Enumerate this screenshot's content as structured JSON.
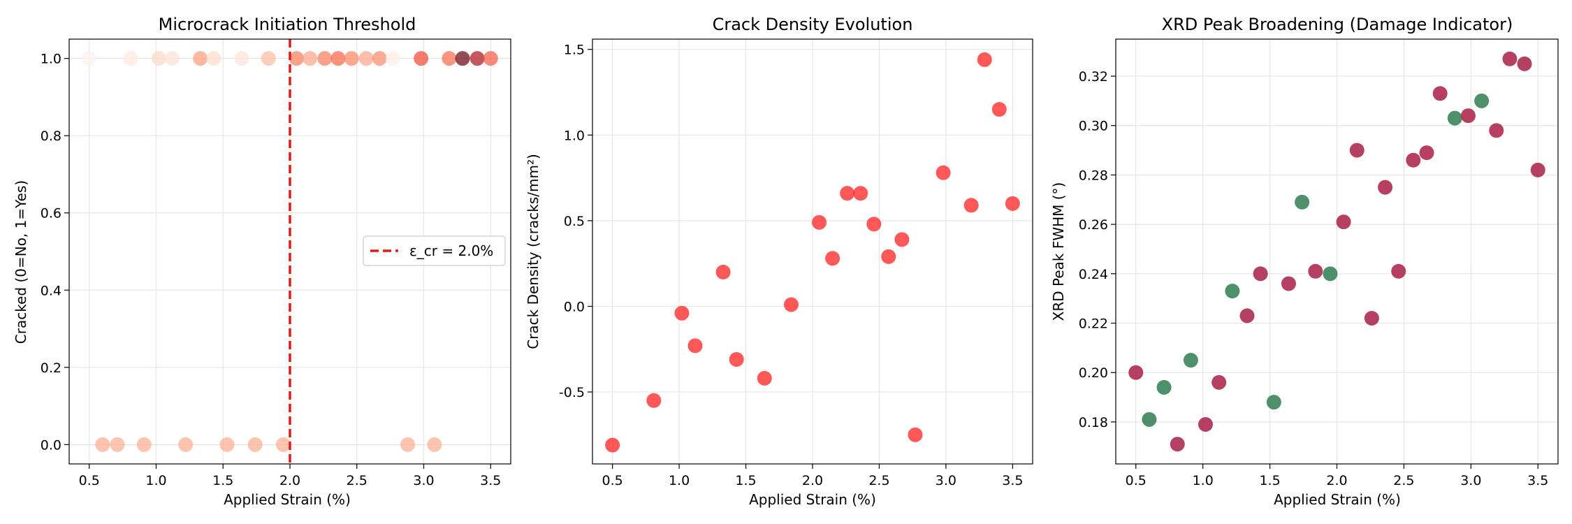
{
  "chart_data": [
    {
      "type": "scatter",
      "title": "Microcrack Initiation Threshold",
      "xlabel": "Applied Strain (%)",
      "ylabel": "Cracked (0=No, 1=Yes)",
      "xlim": [
        0.35,
        3.65
      ],
      "ylim": [
        -0.05,
        1.05
      ],
      "xticks": [
        "0.5",
        "1.0",
        "1.5",
        "2.0",
        "2.5",
        "3.0",
        "3.5"
      ],
      "yticks": [
        "0.0",
        "0.2",
        "0.4",
        "0.6",
        "0.8",
        "1.0"
      ],
      "grid": true,
      "legend_position": "center-right",
      "threshold": {
        "x": 2.0,
        "label": "ε_cr = 2.0%",
        "color": "#e31a1c"
      },
      "points": [
        {
          "x": 0.5,
          "y": 1,
          "c": 0.02
        },
        {
          "x": 0.6,
          "y": 0,
          "c": 0.3
        },
        {
          "x": 0.71,
          "y": 0,
          "c": 0.3
        },
        {
          "x": 0.81,
          "y": 1,
          "c": 0.08
        },
        {
          "x": 0.91,
          "y": 0,
          "c": 0.3
        },
        {
          "x": 1.02,
          "y": 1,
          "c": 0.15
        },
        {
          "x": 1.12,
          "y": 1,
          "c": 0.12
        },
        {
          "x": 1.22,
          "y": 0,
          "c": 0.3
        },
        {
          "x": 1.33,
          "y": 1,
          "c": 0.35
        },
        {
          "x": 1.43,
          "y": 1,
          "c": 0.14
        },
        {
          "x": 1.53,
          "y": 0,
          "c": 0.3
        },
        {
          "x": 1.64,
          "y": 1,
          "c": 0.1
        },
        {
          "x": 1.74,
          "y": 0,
          "c": 0.3
        },
        {
          "x": 1.84,
          "y": 1,
          "c": 0.25
        },
        {
          "x": 1.95,
          "y": 0,
          "c": 0.3
        },
        {
          "x": 2.05,
          "y": 1,
          "c": 0.45
        },
        {
          "x": 2.15,
          "y": 1,
          "c": 0.32
        },
        {
          "x": 2.26,
          "y": 1,
          "c": 0.45
        },
        {
          "x": 2.36,
          "y": 1,
          "c": 0.52
        },
        {
          "x": 2.46,
          "y": 1,
          "c": 0.42
        },
        {
          "x": 2.57,
          "y": 1,
          "c": 0.32
        },
        {
          "x": 2.67,
          "y": 1,
          "c": 0.4
        },
        {
          "x": 2.77,
          "y": 1,
          "c": 0.05
        },
        {
          "x": 2.88,
          "y": 0,
          "c": 0.3
        },
        {
          "x": 2.98,
          "y": 1,
          "c": 0.6
        },
        {
          "x": 3.08,
          "y": 0,
          "c": 0.3
        },
        {
          "x": 3.19,
          "y": 1,
          "c": 0.5
        },
        {
          "x": 3.29,
          "y": 1,
          "c": 1.0
        },
        {
          "x": 3.4,
          "y": 1,
          "c": 0.85
        },
        {
          "x": 3.5,
          "y": 1,
          "c": 0.55
        }
      ]
    },
    {
      "type": "scatter",
      "title": "Crack Density Evolution",
      "xlabel": "Applied Strain (%)",
      "ylabel": "Crack Density (cracks/mm²)",
      "xlim": [
        0.35,
        3.65
      ],
      "ylim": [
        -0.92,
        1.56
      ],
      "xticks": [
        "0.5",
        "1.0",
        "1.5",
        "2.0",
        "2.5",
        "3.0",
        "3.5"
      ],
      "yticks": [
        "-0.5",
        "0.0",
        "0.5",
        "1.0",
        "1.5"
      ],
      "grid": true,
      "color": "#ff2020",
      "points": [
        {
          "x": 0.5,
          "y": -0.81
        },
        {
          "x": 0.81,
          "y": -0.55
        },
        {
          "x": 1.02,
          "y": -0.04
        },
        {
          "x": 1.12,
          "y": -0.23
        },
        {
          "x": 1.33,
          "y": 0.2
        },
        {
          "x": 1.43,
          "y": -0.31
        },
        {
          "x": 1.64,
          "y": -0.42
        },
        {
          "x": 1.84,
          "y": 0.01
        },
        {
          "x": 2.05,
          "y": 0.49
        },
        {
          "x": 2.15,
          "y": 0.28
        },
        {
          "x": 2.26,
          "y": 0.66
        },
        {
          "x": 2.36,
          "y": 0.66
        },
        {
          "x": 2.46,
          "y": 0.48
        },
        {
          "x": 2.57,
          "y": 0.29
        },
        {
          "x": 2.67,
          "y": 0.39
        },
        {
          "x": 2.77,
          "y": -0.75
        },
        {
          "x": 2.98,
          "y": 0.78
        },
        {
          "x": 3.19,
          "y": 0.59
        },
        {
          "x": 3.29,
          "y": 1.44
        },
        {
          "x": 3.4,
          "y": 1.15
        },
        {
          "x": 3.5,
          "y": 0.6
        }
      ]
    },
    {
      "type": "scatter",
      "title": "XRD Peak Broadening (Damage Indicator)",
      "xlabel": "Applied Strain (%)",
      "ylabel": "XRD Peak FWHM (°)",
      "xlim": [
        0.35,
        3.65
      ],
      "ylim": [
        0.163,
        0.335
      ],
      "xticks": [
        "0.5",
        "1.0",
        "1.5",
        "2.0",
        "2.5",
        "3.0",
        "3.5"
      ],
      "yticks": [
        "0.18",
        "0.20",
        "0.22",
        "0.24",
        "0.26",
        "0.28",
        "0.30",
        "0.32"
      ],
      "grid": true,
      "colors": {
        "cracked": "#a91e45",
        "uncracked": "#2e7d4f"
      },
      "points": [
        {
          "x": 0.5,
          "y": 0.2,
          "g": "cracked"
        },
        {
          "x": 0.6,
          "y": 0.181,
          "g": "uncracked"
        },
        {
          "x": 0.71,
          "y": 0.194,
          "g": "uncracked"
        },
        {
          "x": 0.81,
          "y": 0.171,
          "g": "cracked"
        },
        {
          "x": 0.91,
          "y": 0.205,
          "g": "uncracked"
        },
        {
          "x": 1.02,
          "y": 0.179,
          "g": "cracked"
        },
        {
          "x": 1.12,
          "y": 0.196,
          "g": "cracked"
        },
        {
          "x": 1.22,
          "y": 0.233,
          "g": "uncracked"
        },
        {
          "x": 1.33,
          "y": 0.223,
          "g": "cracked"
        },
        {
          "x": 1.43,
          "y": 0.24,
          "g": "cracked"
        },
        {
          "x": 1.53,
          "y": 0.188,
          "g": "uncracked"
        },
        {
          "x": 1.64,
          "y": 0.236,
          "g": "cracked"
        },
        {
          "x": 1.74,
          "y": 0.269,
          "g": "uncracked"
        },
        {
          "x": 1.84,
          "y": 0.241,
          "g": "cracked"
        },
        {
          "x": 1.95,
          "y": 0.24,
          "g": "uncracked"
        },
        {
          "x": 2.05,
          "y": 0.261,
          "g": "cracked"
        },
        {
          "x": 2.15,
          "y": 0.29,
          "g": "cracked"
        },
        {
          "x": 2.26,
          "y": 0.222,
          "g": "cracked"
        },
        {
          "x": 2.36,
          "y": 0.275,
          "g": "cracked"
        },
        {
          "x": 2.46,
          "y": 0.241,
          "g": "cracked"
        },
        {
          "x": 2.57,
          "y": 0.286,
          "g": "cracked"
        },
        {
          "x": 2.67,
          "y": 0.289,
          "g": "cracked"
        },
        {
          "x": 2.77,
          "y": 0.313,
          "g": "cracked"
        },
        {
          "x": 2.88,
          "y": 0.303,
          "g": "uncracked"
        },
        {
          "x": 2.98,
          "y": 0.304,
          "g": "cracked"
        },
        {
          "x": 3.08,
          "y": 0.31,
          "g": "uncracked"
        },
        {
          "x": 3.19,
          "y": 0.298,
          "g": "cracked"
        },
        {
          "x": 3.29,
          "y": 0.327,
          "g": "cracked"
        },
        {
          "x": 3.4,
          "y": 0.325,
          "g": "cracked"
        },
        {
          "x": 3.5,
          "y": 0.282,
          "g": "cracked"
        }
      ]
    }
  ]
}
